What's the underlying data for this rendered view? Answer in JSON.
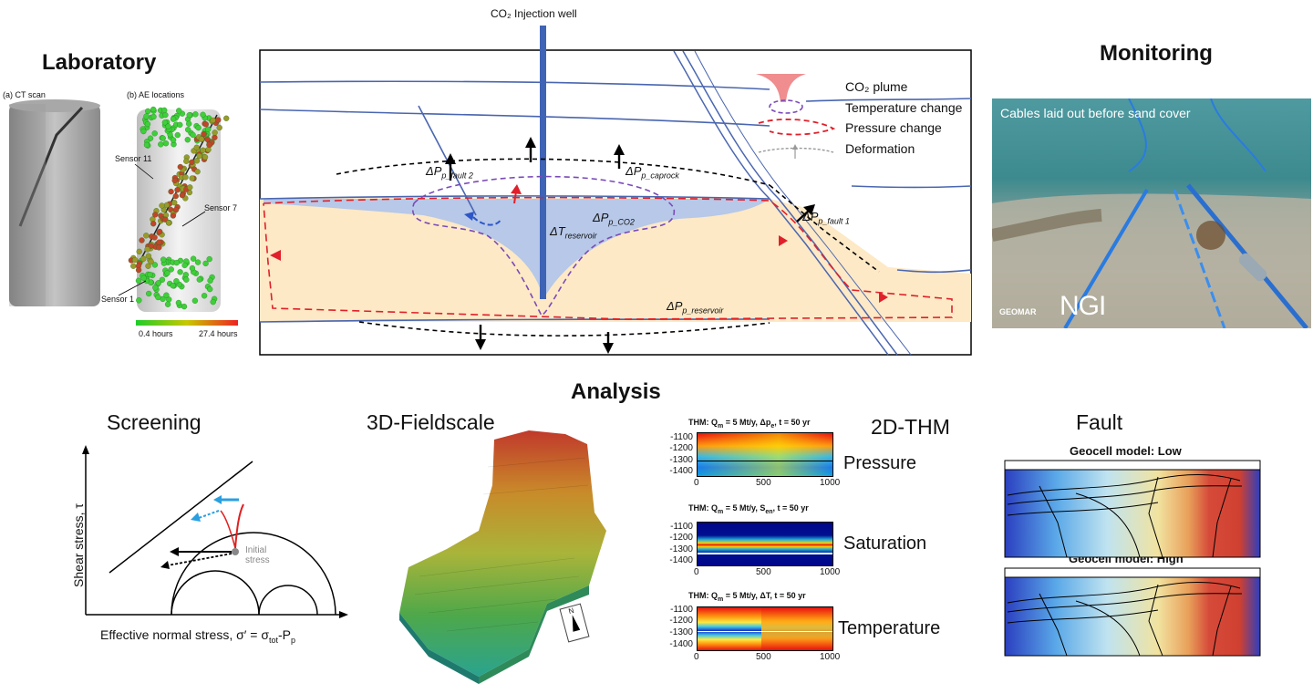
{
  "injection_well_label": "CO₂ Injection  well",
  "sections": {
    "laboratory": "Laboratory",
    "monitoring": "Monitoring",
    "analysis": "Analysis",
    "screening": "Screening",
    "fieldscale": "3D-Fieldscale",
    "thm": "2D-THM",
    "fault": "Fault"
  },
  "lab": {
    "label_a": "(a) CT scan",
    "label_b": "(b) AE locations",
    "sensor_11": "Sensor 11",
    "sensor_7": "Sensor 7",
    "sensor_1": "Sensor 1",
    "time_min": "0.4 hours",
    "time_max": "27.4 hours"
  },
  "legend": {
    "plume": "CO₂ plume",
    "temperature": "Temperature change",
    "pressure": "Pressure change",
    "deformation": "Deformation"
  },
  "schematic_labels": {
    "dp_fault2": "ΔP",
    "dp_fault2_sub": "p_fault 2",
    "dp_caprock": "ΔP",
    "dp_caprock_sub": "p_caprock",
    "dp_co2": "ΔP",
    "dp_co2_sub": "p_CO2",
    "dt_res": "ΔT",
    "dt_res_sub": "reservoir",
    "dp_fault1": "ΔP",
    "dp_fault1_sub": "p_fault 1",
    "dp_res": "ΔP",
    "dp_res_sub": "p_reservoir"
  },
  "monitoring_caption": "Cables laid out before sand cover",
  "logos": {
    "geomar": "GEOMAR",
    "ngi": "NGI"
  },
  "screening": {
    "ylabel": "Shear stress, τ",
    "xlabel": "Effective normal stress, σ′ = σ",
    "xlabel_sub1": "tot",
    "xlabel_mid": "-P",
    "xlabel_sub2": "p",
    "initial_stress": "Initial stress"
  },
  "thm": {
    "panels": [
      {
        "title": "THM: Q",
        "title_sub": "m",
        "title_rest": "= 5 Mt/y, Δp",
        "title_sub2": "e",
        "title_end": ", t = 50 yr",
        "label": "Pressure"
      },
      {
        "title": "THM: Q",
        "title_sub": "m",
        "title_rest": "= 5 Mt/y, S",
        "title_sub2": "en",
        "title_end": ", t = 50 yr",
        "label": "Saturation"
      },
      {
        "title": "THM: Q",
        "title_sub": "m",
        "title_rest": "= 5 Mt/y, ΔT, t = 50 yr",
        "title_sub2": "",
        "title_end": "",
        "label": "Temperature"
      }
    ],
    "y_ticks": [
      "-1100",
      "-1200",
      "-1300",
      "-1400"
    ],
    "x_ticks": [
      "0",
      "500",
      "1000"
    ]
  },
  "fault": {
    "low": "Geocell model: Low",
    "high": "Geocell model: High"
  },
  "north": "N"
}
